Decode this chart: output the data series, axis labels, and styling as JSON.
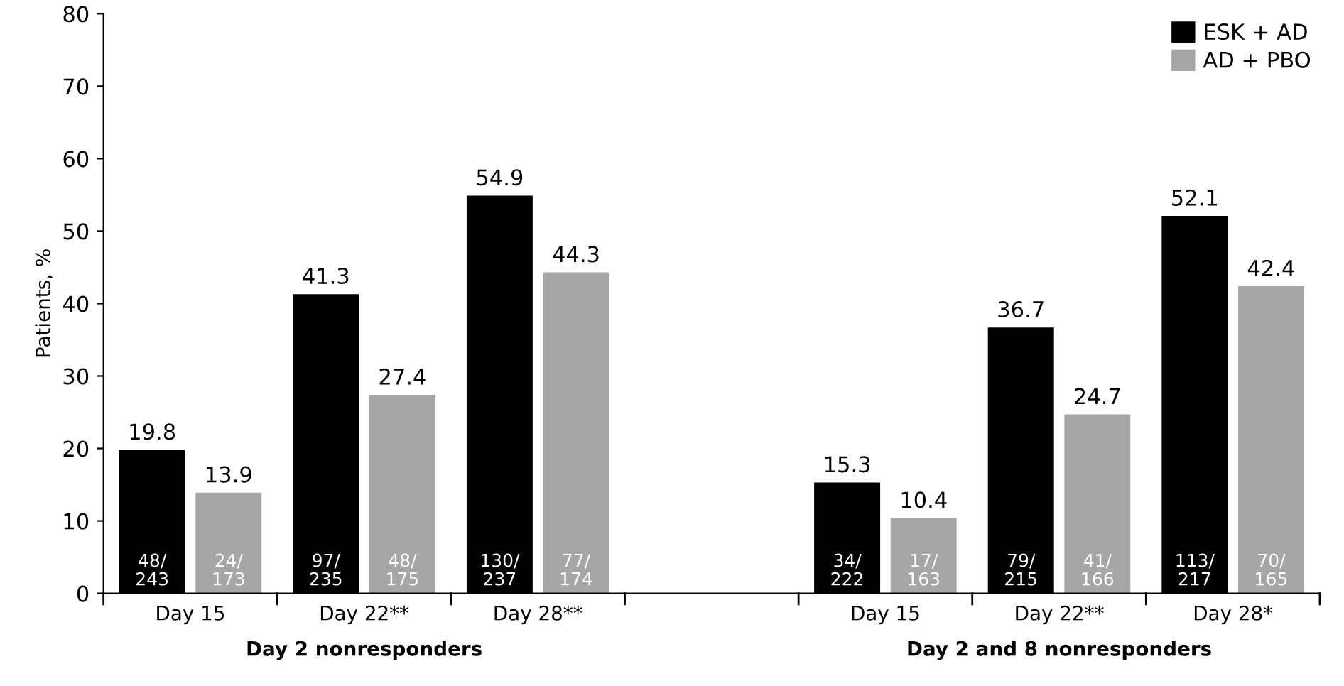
{
  "chart_data": {
    "type": "bar",
    "ylabel": "Patients, %",
    "categories": [
      "Day 15",
      "Day 22**",
      "Day 28**",
      null,
      "Day 15",
      "Day 22**",
      "Day 28*"
    ],
    "series": [
      {
        "name": "ESK + AD",
        "color": "#000000",
        "values": [
          19.8,
          41.3,
          54.9,
          null,
          15.3,
          36.7,
          52.1
        ],
        "value_labels": [
          "19.8",
          "41.3",
          "54.9",
          null,
          "15.3",
          "36.7",
          "52.1"
        ]
      },
      {
        "name": "AD + PBO",
        "color": "#a6a6a6",
        "values": [
          13.9,
          27.4,
          44.3,
          null,
          10.4,
          24.7,
          42.4
        ],
        "value_labels": [
          "13.9",
          "27.4",
          "44.3",
          null,
          "10.4",
          "24.7",
          "42.4"
        ]
      }
    ],
    "ylim": [
      0,
      80
    ],
    "yticks": [
      0,
      10,
      20,
      30,
      40,
      50,
      60,
      70,
      80
    ],
    "legend": "top right",
    "annotations": [
      "Day 2 nonresponders",
      "Day 2 and 8 nonresponders",
      "48/\n243",
      "97/\n235",
      "130/\n237",
      "34/\n222",
      "79/\n215",
      "113/\n217",
      "24/\n173",
      "48/\n175",
      "77/\n174",
      "17/\n163",
      "41/\n166",
      "70/\n165"
    ]
  }
}
